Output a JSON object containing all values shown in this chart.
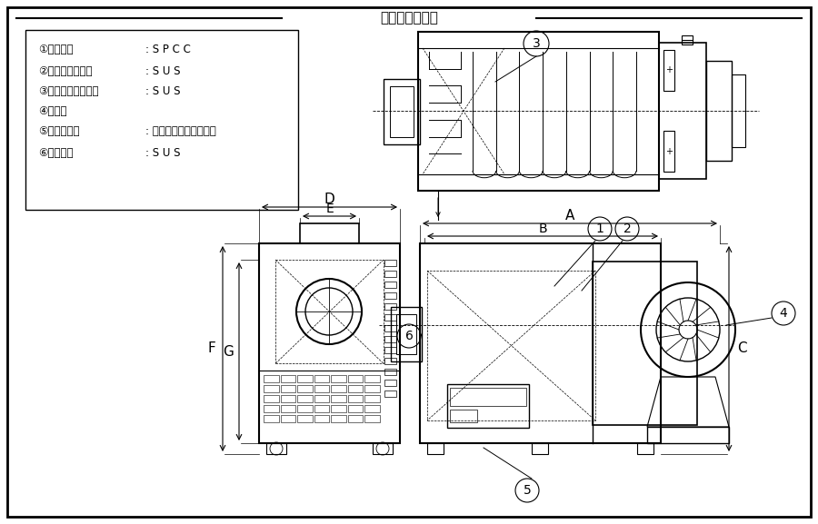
{
  "title": "》外観・寸法《",
  "title_display": "【外観・寸法】",
  "bg_color": "#ffffff",
  "line_color": "#000000",
  "specs": [
    [
      "①フレーム",
      ": S P C C"
    ],
    [
      "②ヒータボックス",
      ": S U S"
    ],
    [
      "③ヒータエレメント",
      ": S U S"
    ],
    [
      "④送風機",
      ""
    ],
    [
      "⑤操作パネル",
      ": デジタル、シートキー"
    ],
    [
      "⑥吹出し口",
      ": S U S"
    ]
  ]
}
